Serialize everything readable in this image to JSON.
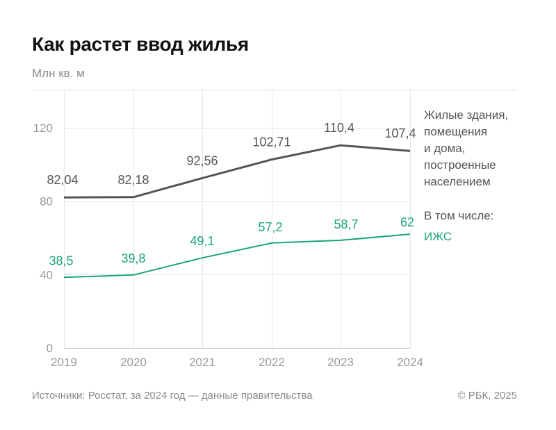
{
  "chart_data": {
    "type": "line",
    "title": "Как растет ввод жилья",
    "ylabel": "Млн кв. м",
    "x": [
      "2019",
      "2020",
      "2021",
      "2022",
      "2023",
      "2024"
    ],
    "y_ticks": [
      "0",
      "40",
      "80",
      "120"
    ],
    "ylim": [
      0,
      140
    ],
    "series": [
      {
        "name": "Жилые здания, помещения и дома, построенные населением",
        "name_lines": [
          "Жилые здания,",
          "помещения",
          "и дома,",
          "построенные",
          "населением"
        ],
        "values": [
          82.04,
          82.18,
          92.56,
          102.71,
          110.4,
          107.4
        ],
        "labels": [
          "82,04",
          "82,18",
          "92,56",
          "102,71",
          "110,4",
          "107,4"
        ],
        "color": "#555555"
      },
      {
        "name": "ИЖС",
        "prefix": "В том числе:",
        "values": [
          38.5,
          39.8,
          49.1,
          57.2,
          58.7,
          62
        ],
        "labels": [
          "38,5",
          "39,8",
          "49,1",
          "57,2",
          "58,7",
          "62"
        ],
        "color": "#1aa37a"
      }
    ],
    "grid": true
  },
  "footer": {
    "source": "Источники: Росстат, за 2024 год — данные правительства",
    "copyright": "© РБК, 2025"
  }
}
